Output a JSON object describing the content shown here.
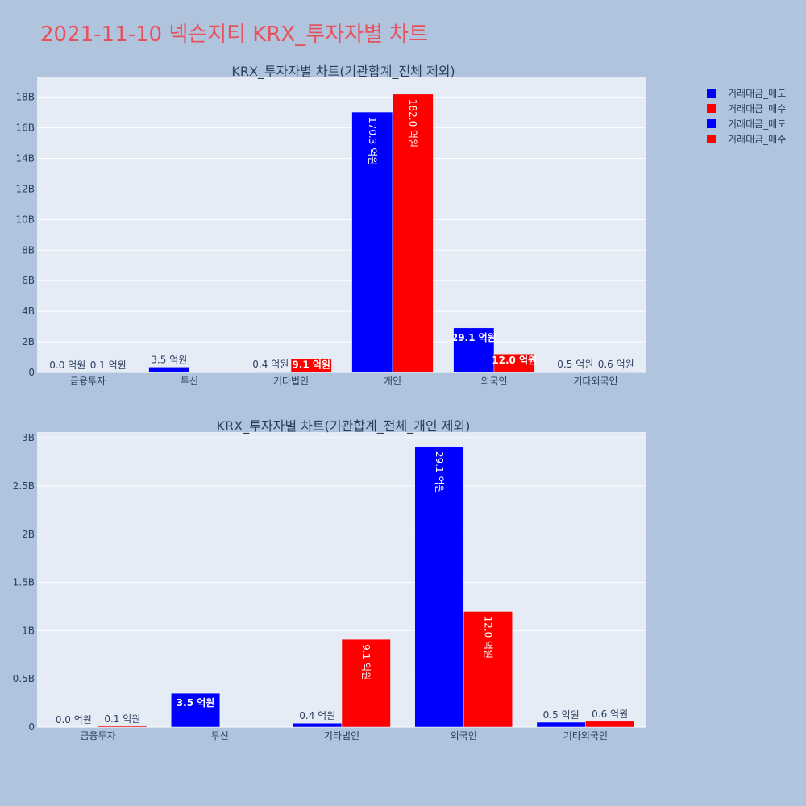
{
  "page_title": "2021-11-10 넥슨지티 KRX_투자자별 차트",
  "colors": {
    "sell": "#0000ff",
    "buy": "#ff0000",
    "plot_bg": "#e5ecf6",
    "page_bg": "#b0c4de",
    "title": "#e8515b"
  },
  "legend": {
    "placement": "top-right",
    "entries": [
      {
        "label": "거래대금_매도",
        "color": "#0000ff"
      },
      {
        "label": "거래대금_매수",
        "color": "#ff0000"
      },
      {
        "label": "거래대금_매도",
        "color": "#0000ff"
      },
      {
        "label": "거래대금_매수",
        "color": "#ff0000"
      }
    ]
  },
  "chart_data": [
    {
      "type": "bar",
      "title": "KRX_투자자별 차트(기관합계_전체 제외)",
      "categories": [
        "금융투자",
        "투신",
        "기타법인",
        "개인",
        "외국인",
        "기타외국인"
      ],
      "series": [
        {
          "name": "거래대금_매도",
          "color": "#0000ff",
          "values": [
            0.0,
            350000000,
            40000000,
            17030000000,
            2910000000,
            50000000
          ],
          "labels": [
            "0.0 억원",
            "3.5 억원",
            "0.4 억원",
            "170.3 억원",
            "29.1 억원",
            "0.5 억원"
          ]
        },
        {
          "name": "거래대금_매수",
          "color": "#ff0000",
          "values": [
            10000000,
            0,
            910000000,
            18200000000,
            1200000000,
            60000000
          ],
          "labels": [
            "0.1 억원",
            "",
            "9.1 억원",
            "182.0 억원",
            "12.0 억원",
            "0.6 억원"
          ]
        }
      ],
      "ylim": [
        0,
        19300000000
      ],
      "yticks": [
        0,
        2000000000,
        4000000000,
        6000000000,
        8000000000,
        10000000000,
        12000000000,
        14000000000,
        16000000000,
        18000000000
      ],
      "ytick_labels": [
        "0",
        "2B",
        "4B",
        "6B",
        "8B",
        "10B",
        "12B",
        "14B",
        "16B",
        "18B"
      ],
      "grid": true
    },
    {
      "type": "bar",
      "title": "KRX_투자자별 차트(기관합계_전체_개인 제외)",
      "categories": [
        "금융투자",
        "투신",
        "기타법인",
        "외국인",
        "기타외국인"
      ],
      "series": [
        {
          "name": "거래대금_매도",
          "color": "#0000ff",
          "values": [
            0.0,
            350000000,
            40000000,
            2910000000,
            50000000
          ],
          "labels": [
            "0.0 억원",
            "3.5 억원",
            "0.4 억원",
            "29.1 억원",
            "0.5 억원"
          ]
        },
        {
          "name": "거래대금_매수",
          "color": "#ff0000",
          "values": [
            10000000,
            0,
            910000000,
            1200000000,
            60000000
          ],
          "labels": [
            "0.1 억원",
            "",
            "9.1 억원",
            "12.0 억원",
            "0.6 억원"
          ]
        }
      ],
      "ylim": [
        0,
        3060000000
      ],
      "yticks": [
        0,
        500000000,
        1000000000,
        1500000000,
        2000000000,
        2500000000,
        3000000000
      ],
      "ytick_labels": [
        "0",
        "0.5B",
        "1B",
        "1.5B",
        "2B",
        "2.5B",
        "3B"
      ],
      "grid": true
    }
  ]
}
